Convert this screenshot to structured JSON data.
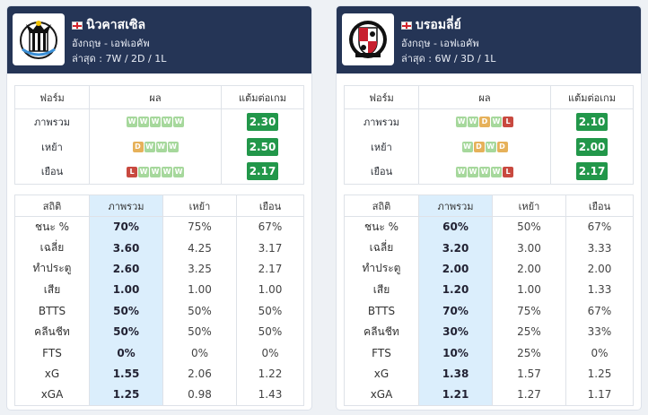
{
  "cards": [
    {
      "team": "นิวคาสเซิล",
      "league": "อังกฤษ - เอฟเอคัพ",
      "recent": "ล่าสุด : 7W / 2D / 1L",
      "logo_icon": "newcastle-crest-icon",
      "form_headers": [
        "ฟอร์ม",
        "ผล",
        "แต้มต่อเกม"
      ],
      "form_rows": [
        {
          "label": "ภาพรวม",
          "results": [
            "W",
            "W",
            "W",
            "W",
            "W"
          ],
          "ppg": "2.30"
        },
        {
          "label": "เหย้า",
          "results": [
            "D",
            "W",
            "W",
            "W"
          ],
          "ppg": "2.50"
        },
        {
          "label": "เยือน",
          "results": [
            "L",
            "W",
            "W",
            "W",
            "W"
          ],
          "ppg": "2.17"
        }
      ],
      "stats_headers": [
        "สถิติ",
        "ภาพรวม",
        "เหย้า",
        "เยือน"
      ],
      "stats_rows": [
        [
          "ชนะ %",
          "70%",
          "75%",
          "67%"
        ],
        [
          "เฉลี่ย",
          "3.60",
          "4.25",
          "3.17"
        ],
        [
          "ทำประตู",
          "2.60",
          "3.25",
          "2.17"
        ],
        [
          "เสีย",
          "1.00",
          "1.00",
          "1.00"
        ],
        [
          "BTTS",
          "50%",
          "50%",
          "50%"
        ],
        [
          "คลีนชีท",
          "50%",
          "50%",
          "50%"
        ],
        [
          "FTS",
          "0%",
          "0%",
          "0%"
        ],
        [
          "xG",
          "1.55",
          "2.06",
          "1.22"
        ],
        [
          "xGA",
          "1.25",
          "0.98",
          "1.43"
        ]
      ]
    },
    {
      "team": "บรอมลี่ย์",
      "league": "อังกฤษ - เอฟเอคัพ",
      "recent": "ล่าสุด : 6W / 3D / 1L",
      "logo_icon": "bromley-crest-icon",
      "form_headers": [
        "ฟอร์ม",
        "ผล",
        "แต้มต่อเกม"
      ],
      "form_rows": [
        {
          "label": "ภาพรวม",
          "results": [
            "W",
            "W",
            "D",
            "W",
            "L"
          ],
          "ppg": "2.10"
        },
        {
          "label": "เหย้า",
          "results": [
            "W",
            "D",
            "W",
            "D"
          ],
          "ppg": "2.00"
        },
        {
          "label": "เยือน",
          "results": [
            "W",
            "W",
            "W",
            "W",
            "L"
          ],
          "ppg": "2.17"
        }
      ],
      "stats_headers": [
        "สถิติ",
        "ภาพรวม",
        "เหย้า",
        "เยือน"
      ],
      "stats_rows": [
        [
          "ชนะ %",
          "60%",
          "50%",
          "67%"
        ],
        [
          "เฉลี่ย",
          "3.20",
          "3.00",
          "3.33"
        ],
        [
          "ทำประตู",
          "2.00",
          "2.00",
          "2.00"
        ],
        [
          "เสีย",
          "1.20",
          "1.00",
          "1.33"
        ],
        [
          "BTTS",
          "70%",
          "75%",
          "67%"
        ],
        [
          "คลีนชีท",
          "30%",
          "25%",
          "33%"
        ],
        [
          "FTS",
          "10%",
          "25%",
          "0%"
        ],
        [
          "xG",
          "1.38",
          "1.57",
          "1.25"
        ],
        [
          "xGA",
          "1.21",
          "1.27",
          "1.17"
        ]
      ]
    }
  ],
  "colors": {
    "header_bg": "#253556",
    "ppg_badge": "#22974a",
    "win": "#a6d89c",
    "draw": "#e6b15a",
    "loss": "#c8493f",
    "highlight_col": "#dbeefc"
  }
}
